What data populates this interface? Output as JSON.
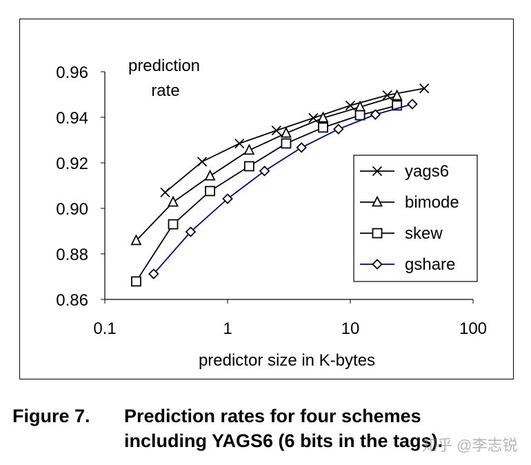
{
  "chart_data": {
    "type": "line",
    "ylabel": "prediction rate",
    "ylabel_lines": [
      "prediction",
      "rate"
    ],
    "xlabel": "predictor size in K-bytes",
    "xscale": "log",
    "xlim": [
      0.1,
      100
    ],
    "ylim": [
      0.86,
      0.96
    ],
    "xticks": [
      "0.1",
      "1",
      "10",
      "100"
    ],
    "yticks": [
      "0.86",
      "0.88",
      "0.90",
      "0.92",
      "0.94",
      "0.96"
    ],
    "grid": false,
    "legend_position": "right",
    "series": [
      {
        "name": "yags6",
        "marker": "x",
        "color": "#000000",
        "x": [
          0.31,
          0.62,
          1.25,
          2.5,
          5,
          10,
          20,
          40
        ],
        "y": [
          0.907,
          0.9205,
          0.9285,
          0.9342,
          0.9397,
          0.9452,
          0.9497,
          0.9527
        ]
      },
      {
        "name": "bimode",
        "marker": "triangle",
        "color": "#000000",
        "x": [
          0.18,
          0.36,
          0.72,
          1.5,
          3,
          6,
          12,
          24
        ],
        "y": [
          0.8858,
          0.9027,
          0.9142,
          0.9255,
          0.933,
          0.9397,
          0.9445,
          0.9494
        ]
      },
      {
        "name": "skew",
        "marker": "square",
        "color": "#000000",
        "x": [
          0.18,
          0.36,
          0.72,
          1.5,
          3,
          6,
          12,
          24
        ],
        "y": [
          0.8679,
          0.893,
          0.9076,
          0.9185,
          0.9285,
          0.9355,
          0.9409,
          0.9452
        ]
      },
      {
        "name": "gshare",
        "marker": "diamond",
        "color": "#000080",
        "x": [
          0.25,
          0.5,
          1,
          2,
          4,
          8,
          16,
          32
        ],
        "y": [
          0.8712,
          0.8897,
          0.9042,
          0.9164,
          0.9267,
          0.9348,
          0.9412,
          0.9458
        ]
      }
    ]
  },
  "caption": {
    "label": "Figure 7.",
    "line1": "Prediction rates for four schemes",
    "line2": "including YAGS6 (6 bits in the tags)."
  },
  "watermark": "知乎 @李志锐"
}
